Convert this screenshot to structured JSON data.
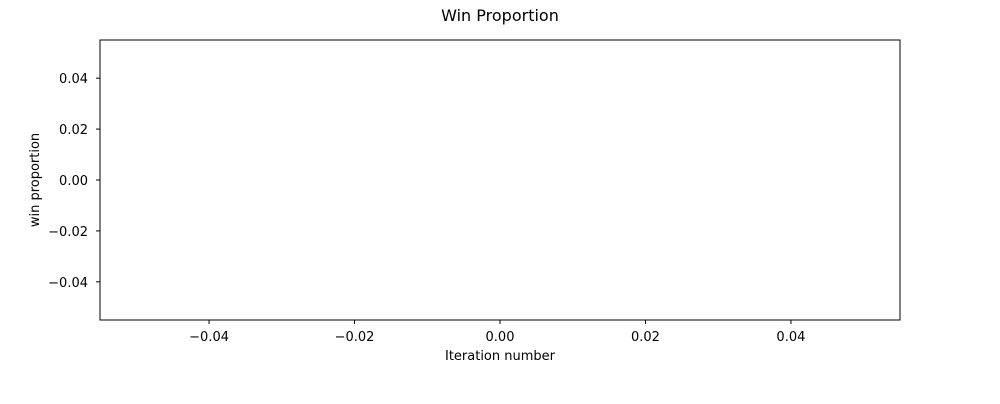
{
  "chart_data": {
    "type": "line",
    "title": "Win Proportion",
    "xlabel": "Iteration number",
    "ylabel": "win proportion",
    "xlim": [
      -0.055,
      0.055
    ],
    "ylim": [
      -0.055,
      0.055
    ],
    "x_ticks": [
      -0.04,
      -0.02,
      0.0,
      0.02,
      0.04
    ],
    "x_tick_labels": [
      "−0.04",
      "−0.02",
      "0.00",
      "0.02",
      "0.04"
    ],
    "y_ticks": [
      -0.04,
      -0.02,
      0.0,
      0.02,
      0.04
    ],
    "y_tick_labels": [
      "−0.04",
      "−0.02",
      "0.00",
      "0.02",
      "0.04"
    ],
    "series": [
      {
        "x": [],
        "y": []
      }
    ],
    "grid": false,
    "legend": "none"
  }
}
